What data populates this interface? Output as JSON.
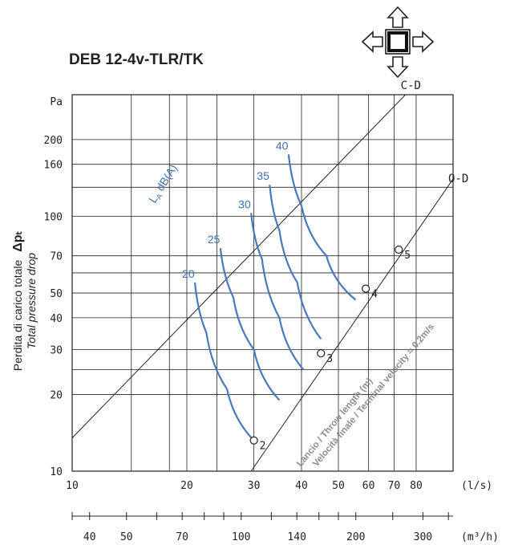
{
  "chart_data": {
    "type": "line",
    "title": "DEB 12-4v-TLR/TK",
    "ylabel_it": "Perdita di carico totale",
    "ylabel_symbol": "Δpₜ",
    "ylabel_en": "Total pressure drop",
    "yunit": "Pa",
    "xunit_ls": "(l/s)",
    "xunit_m3h": "(m³/h)",
    "y_scale": "log",
    "x_scale": "log",
    "ylim": [
      10,
      300
    ],
    "xlim": [
      10,
      100
    ],
    "y_ticks": [
      {
        "v": 10,
        "label": "10"
      },
      {
        "v": 20,
        "label": "20"
      },
      {
        "v": 30,
        "label": "30"
      },
      {
        "v": 40,
        "label": "40"
      },
      {
        "v": 50,
        "label": "50"
      },
      {
        "v": 70,
        "label": "70"
      },
      {
        "v": 100,
        "label": "100"
      },
      {
        "v": 160,
        "label": "160"
      },
      {
        "v": 200,
        "label": "200"
      }
    ],
    "y_grid": [
      10,
      20,
      25,
      30,
      40,
      50,
      60,
      70,
      100,
      130,
      160,
      200
    ],
    "x_ticks_ls": [
      {
        "v": 10,
        "label": "10"
      },
      {
        "v": 20,
        "label": "20"
      },
      {
        "v": 30,
        "label": "30"
      },
      {
        "v": 40,
        "label": "40"
      },
      {
        "v": 50,
        "label": "50"
      },
      {
        "v": 60,
        "label": "60"
      },
      {
        "v": 70,
        "label": "70"
      },
      {
        "v": 80,
        "label": "80"
      }
    ],
    "x_grid": [
      10,
      14.3,
      18,
      20,
      24,
      30,
      40,
      50,
      60,
      70,
      80,
      100
    ],
    "x_ticks_m3h": [
      {
        "v": 40,
        "label": "40"
      },
      {
        "v": 50,
        "label": "50"
      },
      {
        "v": 70,
        "label": "70"
      },
      {
        "v": 100,
        "label": "100"
      },
      {
        "v": 140,
        "label": "140"
      },
      {
        "v": 200,
        "label": "200"
      },
      {
        "v": 300,
        "label": "300"
      }
    ],
    "lines": [
      {
        "name": "C-D",
        "x1": 10,
        "y1": 13.5,
        "x2": 75,
        "y2": 300
      },
      {
        "name": "O-D",
        "x1": 29.5,
        "y1": 10,
        "x2": 100,
        "y2": 140
      }
    ],
    "noise_label": "L",
    "noise_label_sub": "A",
    "noise_label_unit": "dB(A)",
    "noise_curves": [
      {
        "label": "20",
        "points": [
          [
            21,
            55
          ],
          [
            22.5,
            35
          ],
          [
            25.5,
            21
          ],
          [
            30,
            13.2
          ]
        ]
      },
      {
        "label": "25",
        "points": [
          [
            24.5,
            75
          ],
          [
            26.5,
            48
          ],
          [
            30,
            30
          ],
          [
            35,
            19
          ]
        ]
      },
      {
        "label": "30",
        "points": [
          [
            29.5,
            103
          ],
          [
            31.5,
            68
          ],
          [
            35,
            40
          ],
          [
            40.5,
            25
          ]
        ]
      },
      {
        "label": "35",
        "points": [
          [
            33,
            133
          ],
          [
            35,
            88
          ],
          [
            39,
            55
          ],
          [
            45,
            33
          ]
        ]
      },
      {
        "label": "40",
        "points": [
          [
            37,
            175
          ],
          [
            40,
            110
          ],
          [
            46.5,
            70
          ],
          [
            55.5,
            47
          ]
        ]
      }
    ],
    "throw_points": [
      {
        "label": "2",
        "x": 30,
        "y": 13.2
      },
      {
        "label": "3",
        "x": 45,
        "y": 29
      },
      {
        "label": "4",
        "x": 59,
        "y": 52
      },
      {
        "label": "5",
        "x": 72,
        "y": 74
      }
    ],
    "throw_text_1": "Lancio / Throw length (m)",
    "throw_text_2": "Velocità finale / Terminal velocity = 0.2m/s",
    "icon": "four-way-arrows-icon"
  }
}
